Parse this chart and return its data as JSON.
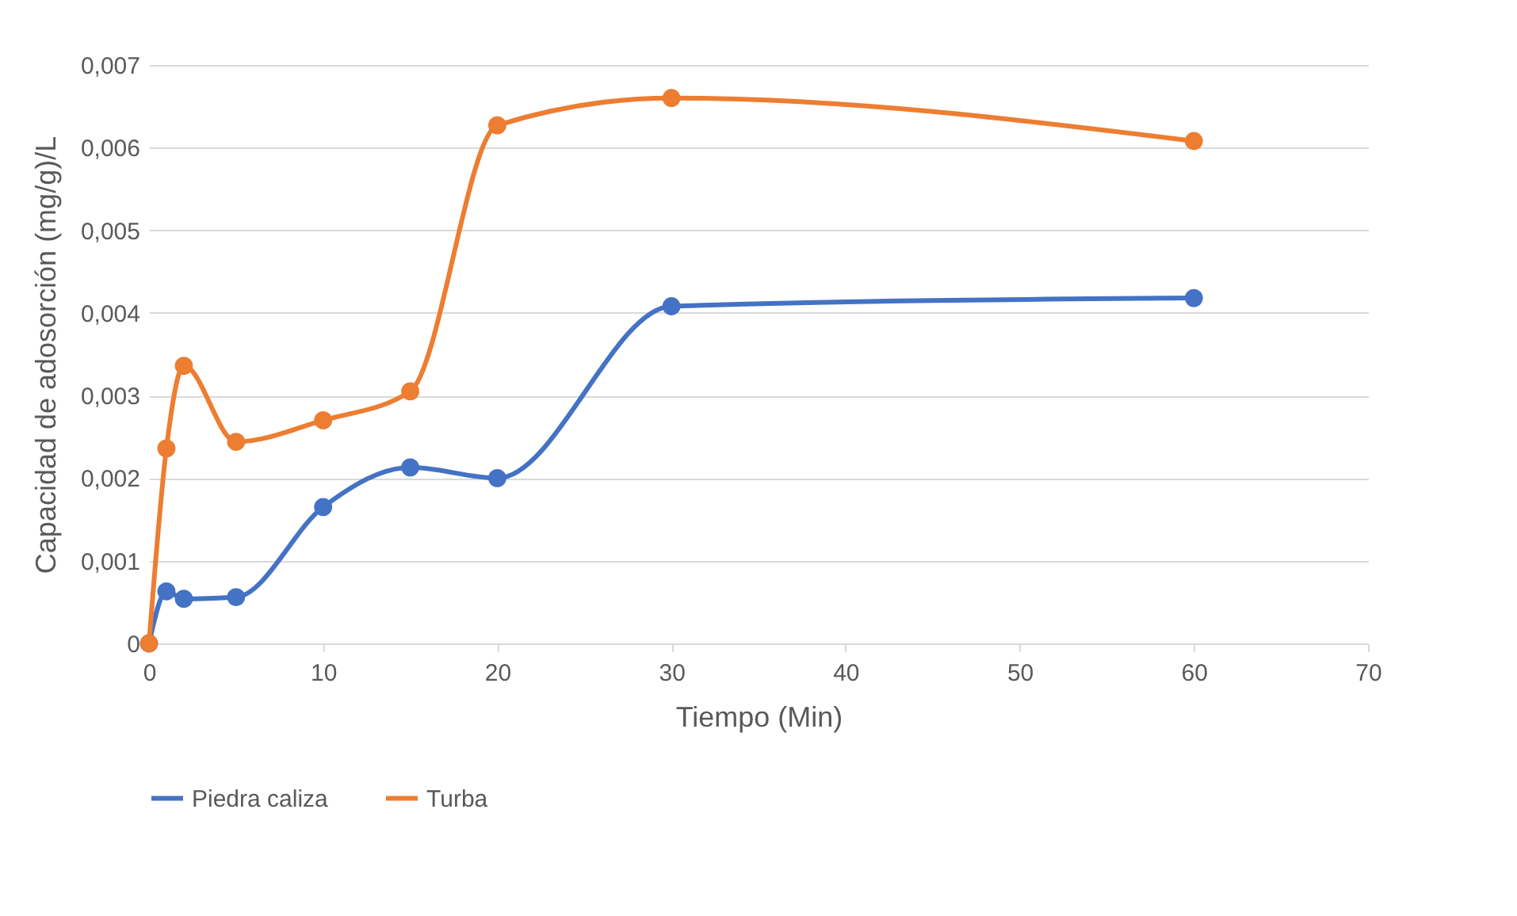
{
  "chart_data": {
    "type": "line",
    "xlabel": "Tiempo (Min)",
    "ylabel": "Capacidad de adosorción (mg/g)/L",
    "xlim": [
      0,
      70
    ],
    "xticks": [
      0,
      10,
      20,
      30,
      40,
      50,
      60,
      70
    ],
    "ylim": [
      0,
      0.007
    ],
    "yticks": [
      0,
      {
        "value": 0.001,
        "label": "0,001"
      },
      {
        "value": 0.002,
        "label": "0,002"
      },
      {
        "value": 0.003,
        "label": "0,003"
      },
      {
        "value": 0.004,
        "label": "0,004"
      },
      {
        "value": 0.005,
        "label": "0,005"
      },
      {
        "value": 0.006,
        "label": "0,006"
      },
      {
        "value": 0.007,
        "label": "0,007"
      }
    ],
    "grid": "y",
    "legend": "bottom",
    "marker": "circle",
    "line_style": "solid",
    "x": [
      0,
      1,
      2,
      5,
      10,
      15,
      20,
      30,
      60
    ],
    "series": [
      {
        "name": "Piedra caliza",
        "color": "#4472c4",
        "values": [
          0,
          0.00063,
          0.00054,
          0.00056,
          0.00165,
          0.00213,
          0.002,
          0.00408,
          0.00418
        ]
      },
      {
        "name": "Turba",
        "color": "#ed7d31",
        "values": [
          0,
          0.00236,
          0.00336,
          0.00244,
          0.0027,
          0.00305,
          0.00627,
          0.0066,
          0.00608
        ]
      }
    ]
  }
}
